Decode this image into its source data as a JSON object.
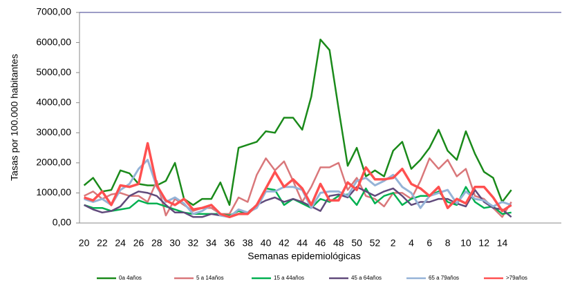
{
  "chart_data": {
    "type": "line",
    "y_label": "Tasas por 100.000 habitantes",
    "x_label": "Semanas epidemiológicas",
    "categories": [
      "20",
      null,
      "22",
      null,
      "24",
      null,
      "26",
      null,
      "28",
      null,
      "30",
      null,
      "32",
      null,
      "34",
      null,
      "36",
      null,
      "38",
      null,
      "40",
      null,
      "42",
      null,
      "44",
      null,
      "46",
      null,
      "48",
      null,
      "50",
      null,
      "52",
      null,
      "2",
      null,
      "4",
      null,
      "6",
      null,
      "8",
      null,
      "10",
      null,
      "12",
      null,
      "14",
      null,
      null,
      null,
      null,
      null,
      null
    ],
    "series": [
      {
        "name": "0a 4años",
        "color": "#1a8a1a",
        "values": [
          1250,
          1500,
          1050,
          1100,
          1750,
          1650,
          1300,
          1250,
          1250,
          1400,
          2000,
          800,
          600,
          800,
          800,
          1350,
          600,
          2500,
          2600,
          2700,
          3050,
          3000,
          3500,
          3500,
          3100,
          4200,
          6100,
          5750,
          3800,
          1900,
          2500,
          1550,
          1750,
          1550,
          2400,
          2700,
          1800,
          2100,
          2500,
          3100,
          2400,
          2100,
          3050,
          2300,
          1700,
          1500,
          700,
          1100,
          null,
          null,
          null,
          null,
          null
        ]
      },
      {
        "name": "5 a 14años",
        "color": "#d9777a",
        "values": [
          900,
          1050,
          800,
          950,
          1000,
          900,
          900,
          700,
          1400,
          250,
          800,
          600,
          400,
          500,
          500,
          300,
          300,
          850,
          700,
          1600,
          2150,
          1750,
          2050,
          1400,
          700,
          1200,
          1850,
          1850,
          2000,
          1100,
          1500,
          900,
          800,
          550,
          1000,
          1000,
          800,
          1400,
          2150,
          1800,
          2100,
          1550,
          1800,
          900,
          800,
          500,
          200,
          700,
          null,
          null,
          null,
          null,
          null
        ]
      },
      {
        "name": "15 a 44años",
        "color": "#00b050",
        "values": [
          600,
          500,
          500,
          400,
          450,
          500,
          750,
          650,
          650,
          550,
          450,
          350,
          300,
          300,
          300,
          300,
          250,
          400,
          300,
          550,
          1150,
          1100,
          600,
          800,
          650,
          500,
          800,
          700,
          900,
          950,
          600,
          1150,
          650,
          900,
          1000,
          600,
          800,
          900,
          900,
          1050,
          700,
          600,
          1200,
          700,
          500,
          550,
          300,
          350,
          null,
          null,
          null,
          null,
          null
        ]
      },
      {
        "name": "45 a 64años",
        "color": "#604a7b",
        "values": [
          600,
          450,
          350,
          400,
          550,
          900,
          1050,
          1000,
          900,
          600,
          350,
          350,
          200,
          200,
          300,
          250,
          200,
          300,
          350,
          600,
          750,
          850,
          700,
          800,
          700,
          550,
          400,
          900,
          950,
          850,
          1200,
          1050,
          900,
          1050,
          1150,
          900,
          600,
          700,
          700,
          800,
          800,
          650,
          550,
          1100,
          700,
          500,
          450,
          200,
          null,
          null,
          null,
          null,
          null
        ]
      },
      {
        "name": "65 a 79años",
        "color": "#95b3d7",
        "values": [
          800,
          700,
          800,
          600,
          1100,
          1300,
          1800,
          2100,
          1200,
          700,
          850,
          650,
          300,
          400,
          600,
          250,
          200,
          450,
          350,
          500,
          1050,
          1050,
          1200,
          1200,
          1100,
          500,
          1000,
          1050,
          1050,
          900,
          1400,
          1500,
          1250,
          1400,
          1600,
          1200,
          1000,
          500,
          900,
          1000,
          1100,
          650,
          1050,
          800,
          750,
          550,
          700,
          600,
          null,
          null,
          null,
          null,
          null
        ]
      },
      {
        "name": ">79años",
        "color": "#ff5050",
        "values": [
          850,
          750,
          1050,
          600,
          1250,
          1200,
          1300,
          2650,
          1250,
          750,
          600,
          800,
          450,
          500,
          600,
          300,
          200,
          300,
          300,
          600,
          1150,
          1700,
          1200,
          1450,
          1150,
          600,
          1300,
          750,
          750,
          1350,
          1100,
          1850,
          1450,
          1450,
          1500,
          1800,
          1300,
          1150,
          900,
          1200,
          500,
          800,
          650,
          1200,
          1200,
          850,
          400,
          600,
          null,
          null,
          null,
          null,
          null
        ]
      }
    ],
    "ylim": [
      0,
      7000
    ],
    "yticks": [
      {
        "value": 0,
        "label": "0,00"
      },
      {
        "value": 1000,
        "label": "1000,00"
      },
      {
        "value": 2000,
        "label": "2000,00"
      },
      {
        "value": 3000,
        "label": "3000,00"
      },
      {
        "value": 4000,
        "label": "4000,00"
      },
      {
        "value": 5000,
        "label": "5000,00"
      },
      {
        "value": 6000,
        "label": "6000,00"
      },
      {
        "value": 7000,
        "label": "7000,00"
      }
    ],
    "legend": "bottom"
  }
}
